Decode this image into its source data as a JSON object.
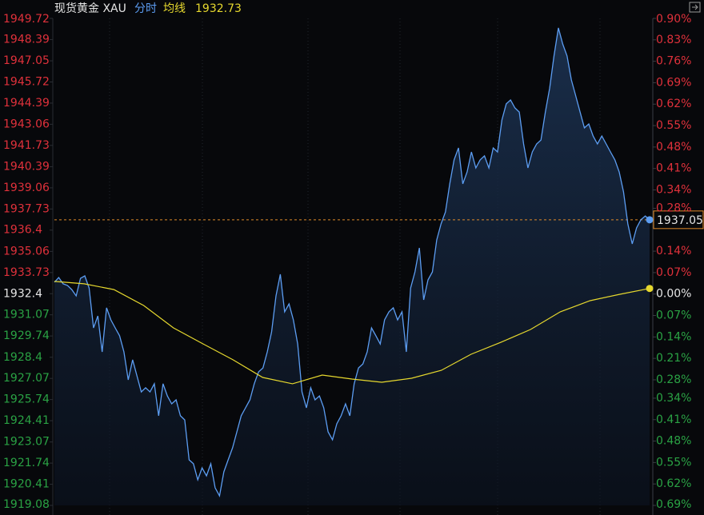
{
  "chart_data": {
    "type": "line",
    "title": "现货黄金 XAU",
    "up_color": "#e0313b",
    "down_color": "#2aa244",
    "flat_color": "#e6e6e6",
    "ylim": [
      1919.08,
      1949.72
    ],
    "yticks": [
      1949.72,
      1948.39,
      1947.05,
      1945.72,
      1944.39,
      1943.06,
      1941.73,
      1940.39,
      1939.06,
      1937.73,
      1936.4,
      1935.06,
      1933.73,
      1932.4,
      1931.07,
      1929.74,
      1928.4,
      1927.07,
      1925.74,
      1924.41,
      1923.07,
      1921.74,
      1920.41,
      1919.08
    ],
    "y2lim": [
      -0.69,
      0.9
    ],
    "y2ticks": [
      {
        "value": 0.9,
        "label": "0.90%"
      },
      {
        "value": 0.83,
        "label": "0.83%"
      },
      {
        "value": 0.76,
        "label": "0.76%"
      },
      {
        "value": 0.69,
        "label": "0.69%"
      },
      {
        "value": 0.62,
        "label": "0.62%"
      },
      {
        "value": 0.55,
        "label": "0.55%"
      },
      {
        "value": 0.48,
        "label": "0.48%"
      },
      {
        "value": 0.41,
        "label": "0.41%"
      },
      {
        "value": 0.34,
        "label": "0.34%"
      },
      {
        "value": 0.28,
        "label": "0.28%"
      },
      {
        "value": 0.14,
        "label": "0.14%"
      },
      {
        "value": 0.07,
        "label": "0.07%"
      },
      {
        "value": 0.0,
        "label": "0.00%"
      },
      {
        "value": -0.07,
        "label": "0.07%"
      },
      {
        "value": -0.14,
        "label": "0.14%"
      },
      {
        "value": -0.21,
        "label": "0.21%"
      },
      {
        "value": -0.28,
        "label": "0.28%"
      },
      {
        "value": -0.34,
        "label": "0.34%"
      },
      {
        "value": -0.41,
        "label": "0.41%"
      },
      {
        "value": -0.48,
        "label": "0.48%"
      },
      {
        "value": -0.55,
        "label": "0.55%"
      },
      {
        "value": -0.62,
        "label": "0.62%"
      },
      {
        "value": -0.69,
        "label": "0.69%"
      }
    ],
    "series": [
      {
        "name": "分时",
        "color": "#5c9df2",
        "last_value": 1937.05,
        "values": [
          1933.12,
          1933.42,
          1933.02,
          1932.92,
          1932.66,
          1932.26,
          1933.37,
          1933.52,
          1932.76,
          1930.25,
          1931.0,
          1928.74,
          1931.51,
          1930.75,
          1930.25,
          1929.75,
          1928.74,
          1926.98,
          1928.24,
          1927.23,
          1926.22,
          1926.48,
          1926.22,
          1926.73,
          1924.72,
          1926.73,
          1925.97,
          1925.47,
          1925.72,
          1924.72,
          1924.46,
          1921.95,
          1921.7,
          1920.69,
          1921.44,
          1920.94,
          1921.7,
          1920.19,
          1919.68,
          1921.19,
          1921.95,
          1922.7,
          1923.71,
          1924.72,
          1925.22,
          1925.72,
          1926.73,
          1927.48,
          1927.73,
          1928.74,
          1930.0,
          1932.26,
          1933.62,
          1931.26,
          1931.76,
          1930.75,
          1929.24,
          1926.22,
          1925.22,
          1926.48,
          1925.72,
          1925.97,
          1925.22,
          1923.71,
          1923.21,
          1924.21,
          1924.72,
          1925.47,
          1924.72,
          1926.73,
          1927.73,
          1927.98,
          1928.74,
          1930.25,
          1929.75,
          1929.24,
          1930.75,
          1931.26,
          1931.51,
          1930.75,
          1931.26,
          1928.74,
          1932.76,
          1933.77,
          1935.28,
          1932.01,
          1933.27,
          1933.77,
          1935.78,
          1936.79,
          1937.54,
          1939.31,
          1940.82,
          1941.57,
          1939.31,
          1940.06,
          1941.32,
          1940.31,
          1940.82,
          1941.07,
          1940.31,
          1941.57,
          1941.32,
          1943.33,
          1944.34,
          1944.59,
          1944.09,
          1943.83,
          1941.82,
          1940.31,
          1941.32,
          1941.82,
          1942.07,
          1943.83,
          1945.34,
          1947.36,
          1949.12,
          1948.11,
          1947.36,
          1945.85,
          1944.84,
          1943.83,
          1942.83,
          1943.08,
          1942.32,
          1941.82,
          1942.32,
          1941.82,
          1941.32,
          1940.82,
          1940.06,
          1938.8,
          1936.79,
          1935.53,
          1936.54,
          1937.05,
          1937.29,
          1937.05
        ]
      },
      {
        "name": "均线",
        "color": "#e6d82e",
        "last_value": 1932.73,
        "values": [
          1933.17,
          1933.02,
          1932.66,
          1931.66,
          1930.25,
          1929.24,
          1928.24,
          1927.13,
          1926.73,
          1927.28,
          1927.03,
          1926.83,
          1927.08,
          1927.58,
          1928.59,
          1929.34,
          1930.15,
          1931.26,
          1931.96,
          1932.36,
          1932.73
        ]
      }
    ]
  }
}
